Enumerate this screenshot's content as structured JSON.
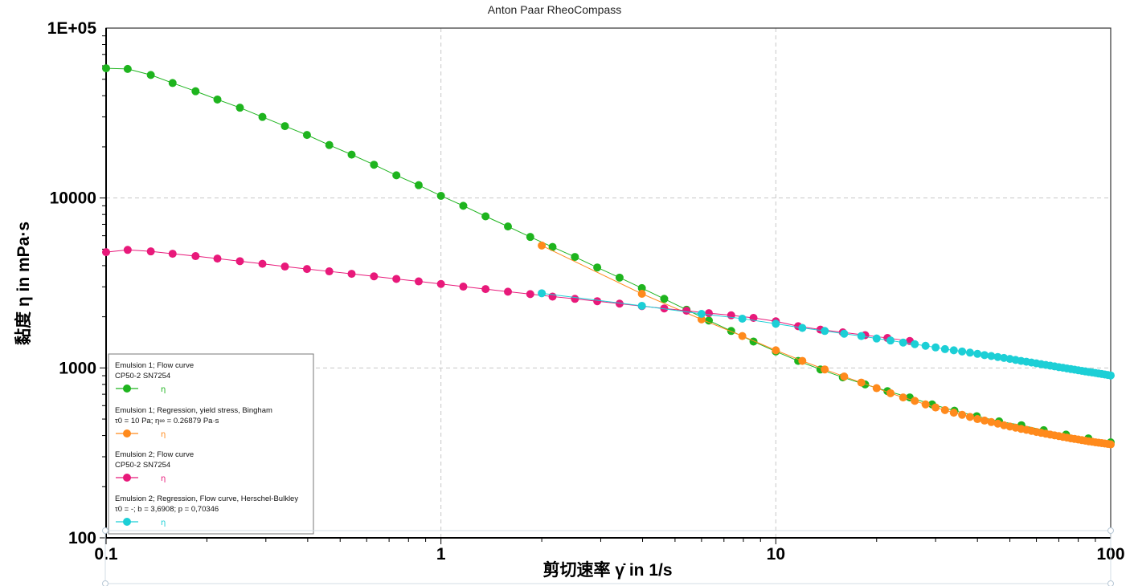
{
  "app": {
    "title": "Anton Paar RheoCompass"
  },
  "chart_data": {
    "type": "scatter",
    "title": "Anton Paar RheoCompass",
    "xlabel": "剪切速率 γ̇ in 1/s",
    "ylabel": "黏度 η in mPa·s",
    "x_scale": "log",
    "y_scale": "log",
    "xlim": [
      0.1,
      100
    ],
    "ylim": [
      100,
      100000
    ],
    "x_ticks": [
      {
        "value": 0.1,
        "label": "0.1"
      },
      {
        "value": 1,
        "label": "1"
      },
      {
        "value": 10,
        "label": "10"
      },
      {
        "value": 100,
        "label": "100"
      }
    ],
    "y_ticks": [
      {
        "value": 100,
        "label": "100"
      },
      {
        "value": 1000,
        "label": "1000"
      },
      {
        "value": 10000,
        "label": "10000"
      },
      {
        "value": 100000,
        "label": "1E+05"
      }
    ],
    "grid": true,
    "legend_position": "bottom-left",
    "series": [
      {
        "name": "Emulsion 1; Flow curve",
        "sub": "CP50-2 SN7254",
        "symbol": "η",
        "color": "#1eb41e",
        "x": [
          0.1,
          0.116,
          0.136,
          0.158,
          0.185,
          0.215,
          0.251,
          0.293,
          0.342,
          0.398,
          0.464,
          0.541,
          0.631,
          0.736,
          0.858,
          1.0,
          1.166,
          1.359,
          1.585,
          1.848,
          2.154,
          2.512,
          2.929,
          3.415,
          3.981,
          4.642,
          5.412,
          6.31,
          7.356,
          8.577,
          10.0,
          11.66,
          13.59,
          15.85,
          18.48,
          21.54,
          25.12,
          29.29,
          34.15,
          39.81,
          46.42,
          54.12,
          63.1,
          73.56,
          85.77,
          100.0
        ],
        "y": [
          58000,
          57500,
          53000,
          47500,
          42500,
          38000,
          34000,
          30000,
          26500,
          23500,
          20500,
          18000,
          15700,
          13600,
          11900,
          10300,
          9000,
          7800,
          6800,
          5900,
          5150,
          4500,
          3900,
          3400,
          2950,
          2550,
          2200,
          1900,
          1650,
          1430,
          1250,
          1100,
          980,
          880,
          800,
          730,
          670,
          610,
          560,
          520,
          485,
          460,
          430,
          405,
          385,
          365
        ]
      },
      {
        "name": "Emulsion 1; Regression, yield stress, Bingham",
        "sub": "τ0 = 10 Pa; η∞ = 0.26879 Pa·s",
        "symbol": "η",
        "color": "#ff8a1c",
        "x": [
          2.0,
          3.981,
          6.0,
          7.943,
          10.0,
          12.0,
          14.0,
          16.0,
          18.0,
          20.0,
          22.0,
          24.0,
          26.0,
          28.0,
          30.0,
          32.0,
          34.0,
          36.0,
          38.0,
          40.0,
          42.0,
          44.0,
          46.0,
          48.0,
          50.0,
          52.0,
          54.0,
          56.0,
          58.0,
          60.0,
          62.0,
          64.0,
          66.0,
          68.0,
          70.0,
          72.0,
          74.0,
          76.0,
          78.0,
          80.0,
          82.0,
          84.0,
          86.0,
          88.0,
          90.0,
          92.0,
          94.0,
          96.0,
          98.0,
          100.0
        ],
        "y": [
          5250,
          2730,
          1930,
          1540,
          1270,
          1100,
          980,
          890,
          820,
          760,
          710,
          670,
          640,
          610,
          585,
          565,
          545,
          530,
          515,
          500,
          490,
          480,
          470,
          460,
          452,
          445,
          438,
          432,
          426,
          420,
          415,
          410,
          405,
          401,
          397,
          393,
          389,
          385,
          382,
          379,
          376,
          373,
          370,
          368,
          365,
          363,
          361,
          359,
          357,
          355
        ]
      },
      {
        "name": "Emulsion 2; Flow curve",
        "sub": "CP50-2 SN7254",
        "symbol": "η",
        "color": "#e8197a",
        "x": [
          0.1,
          0.116,
          0.136,
          0.158,
          0.185,
          0.215,
          0.251,
          0.293,
          0.342,
          0.398,
          0.464,
          0.541,
          0.631,
          0.736,
          0.858,
          1.0,
          1.166,
          1.359,
          1.585,
          1.848,
          2.154,
          2.512,
          2.929,
          3.415,
          3.981,
          4.642,
          5.412,
          6.31,
          7.356,
          8.577,
          10.0,
          11.66,
          13.59,
          15.85,
          18.48,
          21.54,
          25.12
        ],
        "y": [
          4800,
          4950,
          4850,
          4700,
          4550,
          4400,
          4250,
          4100,
          3950,
          3820,
          3700,
          3580,
          3460,
          3340,
          3230,
          3120,
          3010,
          2910,
          2810,
          2720,
          2630,
          2550,
          2470,
          2390,
          2310,
          2240,
          2170,
          2100,
          2040,
          1970,
          1880,
          1760,
          1680,
          1620,
          1560,
          1500,
          1440
        ]
      },
      {
        "name": "Emulsion 2; Regression, Flow curve, Herschel-Bulkley",
        "sub": "τ0 = -; b = 3,6908; p = 0,70346",
        "symbol": "η",
        "color": "#1ccfd6",
        "x": [
          2.0,
          3.981,
          6.0,
          7.943,
          10.0,
          12.0,
          14.0,
          16.0,
          18.0,
          20.0,
          22.0,
          24.0,
          26.0,
          28.0,
          30.0,
          32.0,
          34.0,
          36.0,
          38.0,
          40.0,
          42.0,
          44.0,
          46.0,
          48.0,
          50.0,
          52.0,
          54.0,
          56.0,
          58.0,
          60.0,
          62.0,
          64.0,
          66.0,
          68.0,
          70.0,
          72.0,
          74.0,
          76.0,
          78.0,
          80.0,
          82.0,
          84.0,
          86.0,
          88.0,
          90.0,
          92.0,
          94.0,
          96.0,
          98.0,
          100.0
        ],
        "y": [
          2750,
          2320,
          2080,
          1950,
          1820,
          1720,
          1650,
          1590,
          1540,
          1490,
          1450,
          1410,
          1380,
          1350,
          1320,
          1290,
          1270,
          1250,
          1230,
          1210,
          1190,
          1175,
          1160,
          1145,
          1130,
          1115,
          1100,
          1088,
          1076,
          1064,
          1052,
          1041,
          1031,
          1021,
          1011,
          1002,
          993,
          985,
          977,
          969,
          961,
          954,
          947,
          940,
          934,
          927,
          921,
          915,
          909,
          903
        ]
      }
    ]
  }
}
